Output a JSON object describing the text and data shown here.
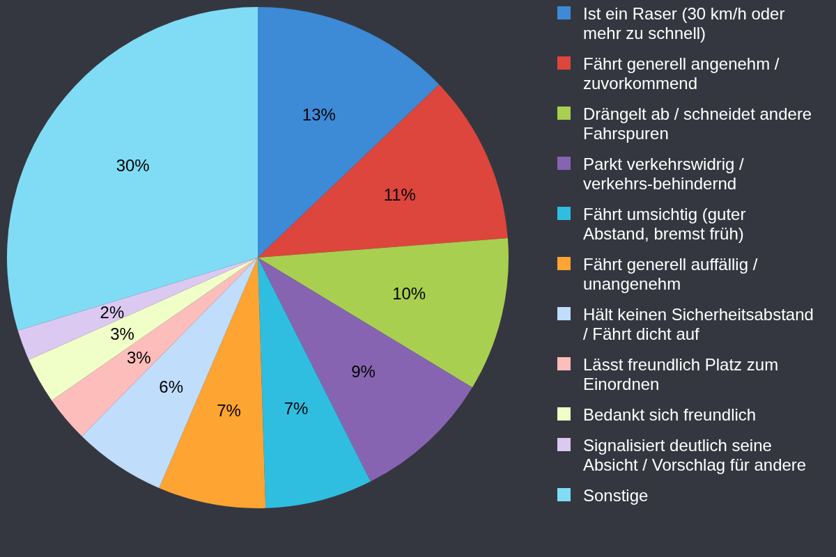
{
  "chart_data": {
    "type": "pie",
    "categories": [
      "Ist ein Raser (30 km/h oder mehr zu schnell)",
      "Fährt generell angenehm / zuvorkommend",
      "Drängelt ab / schneidet andere Fahrspuren",
      "Parkt verkehrswidrig / verkehrs-behindernd",
      "Fährt umsichtig (guter Abstand, bremst früh)",
      "Fährt generell auffällig / unangenehm",
      "Hält keinen Sicherheitsabstand / Fährt dicht auf",
      "Lässt freundlich Platz zum Einordnen",
      "Bedankt sich freundlich",
      "Signalisiert deutlich seine Absicht / Vorschlag für andere",
      "Sonstige"
    ],
    "values": [
      13,
      11,
      10,
      9,
      7,
      7,
      6,
      3,
      3,
      2,
      30
    ],
    "colors": [
      "#3d8ad6",
      "#dc463c",
      "#a8cf50",
      "#8764b2",
      "#2fbee0",
      "#fea432",
      "#c0ddfc",
      "#fdbdbb",
      "#f0fec8",
      "#dcc9f2",
      "#80dcf5"
    ],
    "value_labels": [
      "13%",
      "11%",
      "10%",
      "9%",
      "7%",
      "7%",
      "6%",
      "3%",
      "3%",
      "2%",
      "30%"
    ],
    "legend": "right"
  }
}
